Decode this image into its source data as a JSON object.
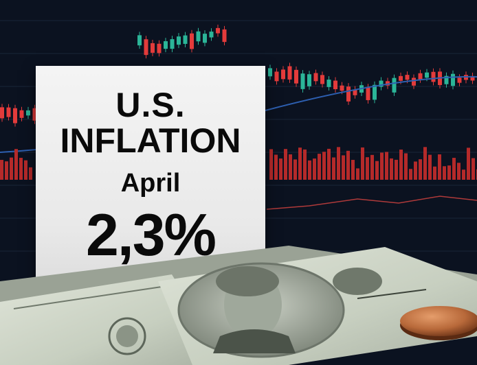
{
  "card": {
    "country": "U.S.",
    "topic": "INFLATION",
    "month": "April",
    "value": "2,3%"
  },
  "colors": {
    "background": "#0b1220",
    "candle_up": "#2bb598",
    "candle_down": "#e33b3b",
    "trend_line": "#2d5fb0",
    "volume": "#b52a2a",
    "card": "#efefef",
    "banknote": "#cfd6c9",
    "coin": "#b8693a"
  },
  "icons": [
    "candlestick-chart",
    "volume-bars",
    "dollar-banknote",
    "coin"
  ]
}
